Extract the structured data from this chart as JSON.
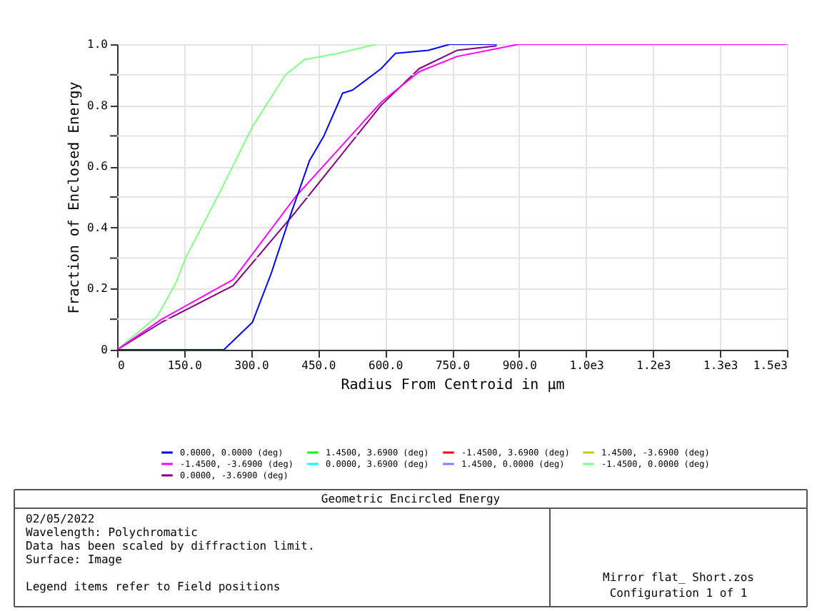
{
  "chart_data": {
    "type": "line",
    "title": "Geometric Encircled Energy",
    "xlabel": "Radius From Centroid in µm",
    "ylabel": "Fraction of Enclosed Energy",
    "xlim": [
      0,
      1500
    ],
    "ylim": [
      0,
      1
    ],
    "xticks": [
      0,
      {
        "value": 150,
        "label": "150.0"
      },
      {
        "value": 300,
        "label": "300.0"
      },
      {
        "value": 450,
        "label": "450.0"
      },
      {
        "value": 600,
        "label": "600.0"
      },
      {
        "value": 750,
        "label": "750.0"
      },
      {
        "value": 900,
        "label": "900.0"
      },
      {
        "value": 1050,
        "label": "1.0e3"
      },
      {
        "value": 1200,
        "label": "1.2e3"
      },
      {
        "value": 1350,
        "label": "1.3e3"
      },
      {
        "value": 1500,
        "label": "1.5e3"
      }
    ],
    "yticks": [
      0,
      {
        "value": 0.1,
        "label": null
      },
      0.2,
      {
        "value": 0.3,
        "label": null
      },
      0.4,
      {
        "value": 0.5,
        "label": null
      },
      0.6,
      {
        "value": 0.7,
        "label": null
      },
      0.8,
      {
        "value": 0.9,
        "label": null
      },
      {
        "value": 1,
        "label": "1.0"
      }
    ],
    "grid": true,
    "legend": "bottom",
    "marker": "none",
    "line_style": "solid",
    "series": [
      {
        "name": "0.0000, 0.0000 (deg)",
        "color": "#0000ff",
        "x": [
          0,
          239,
          303,
          345,
          388,
          431,
          463,
          505,
          527,
          591,
          623,
          697,
          745,
          850
        ],
        "values": [
          0,
          0,
          0.09,
          0.25,
          0.44,
          0.62,
          0.7,
          0.84,
          0.85,
          0.92,
          0.97,
          0.98,
          1,
          1
        ]
      },
      {
        "name": "1.4500, 3.6900 (deg)",
        "color": "#00ff00"
      },
      {
        "name": "-1.4500, 3.6900 (deg)",
        "color": "#ff0000"
      },
      {
        "name": "1.4500, -3.6900 (deg)",
        "color": "#c8c800"
      },
      {
        "name": "-1.4500, -3.6900 (deg)",
        "color": "#ff00ff",
        "x": [
          0,
          100,
          260,
          399,
          591,
          676,
          761,
          900,
          1500
        ],
        "values": [
          0,
          0.1,
          0.23,
          0.5,
          0.81,
          0.91,
          0.96,
          1,
          1
        ]
      },
      {
        "name": "0.0000, 3.6900 (deg)",
        "color": "#00ffff"
      },
      {
        "name": "1.4500, 0.0000 (deg)",
        "color": "#8080ff"
      },
      {
        "name": "-1.4500, 0.0000 (deg)",
        "color": "#80ff80",
        "x": [
          0,
          90,
          132,
          153,
          228,
          303,
          377,
          420,
          495,
          580
        ],
        "values": [
          0,
          0.11,
          0.22,
          0.3,
          0.51,
          0.73,
          0.9,
          0.95,
          0.97,
          1
        ]
      },
      {
        "name": "0.0000, -3.6900 (deg)",
        "color": "#800080",
        "x": [
          0,
          100,
          260,
          399,
          591,
          676,
          761,
          850
        ],
        "values": [
          0,
          0.09,
          0.21,
          0.45,
          0.8,
          0.92,
          0.98,
          0.995
        ]
      }
    ],
    "annotations": [
      "02/05/2022",
      "Wavelength: Polychromatic",
      "Data has been scaled by diffraction limit.",
      "Surface: Image",
      "Legend items refer to Field positions",
      "Mirror flat_ Short.zos",
      "Configuration 1 of 1"
    ]
  }
}
